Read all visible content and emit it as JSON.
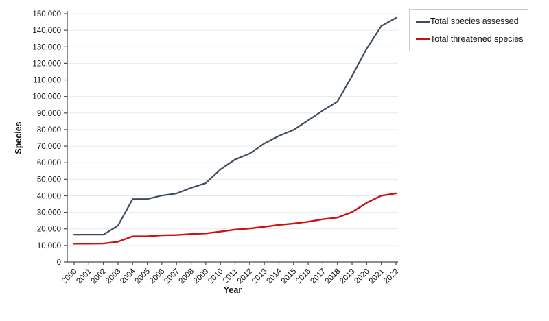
{
  "chart_data": {
    "type": "line",
    "title": "",
    "xlabel": "Year",
    "ylabel": "Species",
    "categories": [
      "2000",
      "2001",
      "2002",
      "2003",
      "2004",
      "2005",
      "2006",
      "2007",
      "2008",
      "2009",
      "2010",
      "2011",
      "2012",
      "2013",
      "2014",
      "2015",
      "2016",
      "2017",
      "2018",
      "2019",
      "2020",
      "2021",
      "2022"
    ],
    "series": [
      {
        "name": "Total species assessed",
        "color": "#3e4c60",
        "values": [
          16507,
          16507,
          16507,
          22000,
          38047,
          38047,
          40168,
          41415,
          44838,
          47677,
          55926,
          61914,
          65518,
          71576,
          76199,
          79837,
          85604,
          91523,
          96951,
          112432,
          128918,
          142577,
          147517
        ]
      },
      {
        "name": "Total threatened species",
        "color": "#d01010",
        "values": [
          11046,
          11046,
          11167,
          12259,
          15503,
          15503,
          16118,
          16306,
          16928,
          17291,
          18351,
          19570,
          20219,
          21286,
          22413,
          23250,
          24307,
          25821,
          26840,
          30178,
          35765,
          40084,
          41459
        ]
      }
    ],
    "ylim": [
      0,
      150000
    ],
    "ytick_step": 10000,
    "grid": "horizontal",
    "legend_position": "top-right"
  },
  "colors": {
    "background": "#ffffff",
    "gridline": "#e9e9e9",
    "axis": "#4a4a4a",
    "tick_text": "#111111",
    "legend_border": "#cccccc"
  }
}
